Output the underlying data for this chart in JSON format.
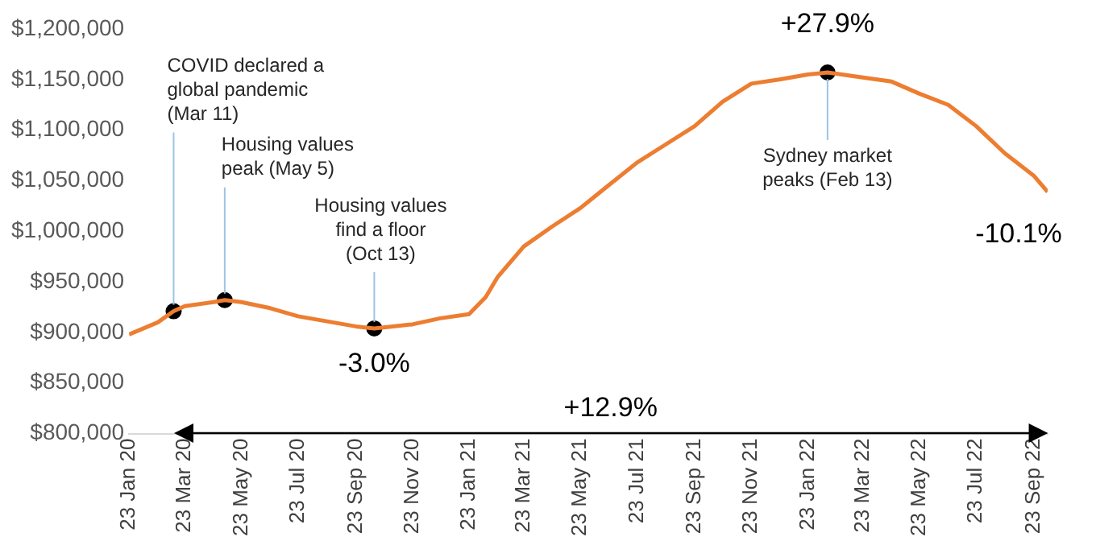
{
  "chart_data": {
    "type": "line",
    "x": [
      "2020-01-23",
      "2020-02-23",
      "2020-03-11",
      "2020-03-23",
      "2020-04-23",
      "2020-05-05",
      "2020-05-23",
      "2020-06-23",
      "2020-07-23",
      "2020-08-23",
      "2020-09-23",
      "2020-10-13",
      "2020-10-23",
      "2020-11-23",
      "2020-12-23",
      "2021-01-23",
      "2021-02-10",
      "2021-02-23",
      "2021-03-23",
      "2021-04-23",
      "2021-05-23",
      "2021-06-23",
      "2021-07-23",
      "2021-08-23",
      "2021-09-23",
      "2021-10-23",
      "2021-11-23",
      "2021-12-23",
      "2022-01-23",
      "2022-02-13",
      "2022-03-23",
      "2022-04-23",
      "2022-05-23",
      "2022-06-23",
      "2022-07-23",
      "2022-08-23",
      "2022-09-23",
      "2022-10-08"
    ],
    "series": [
      {
        "type": "line",
        "color": "#ed7d31",
        "values": [
          898000,
          910000,
          921000,
          926000,
          930000,
          932000,
          930000,
          924000,
          916000,
          911000,
          906000,
          904000,
          905000,
          908000,
          914000,
          918000,
          935000,
          955000,
          985000,
          1005000,
          1023000,
          1046000,
          1068000,
          1086000,
          1104000,
          1128000,
          1146000,
          1150000,
          1155000,
          1157000,
          1152000,
          1148000,
          1136000,
          1125000,
          1104000,
          1077000,
          1055000,
          1039000
        ]
      },
      {
        "type": "scatter",
        "color": "#000000",
        "marker": "circle",
        "x": [
          "2020-03-11",
          "2020-05-05",
          "2020-10-13",
          "2022-02-13"
        ],
        "values": [
          921000,
          932000,
          904000,
          1157000
        ]
      }
    ],
    "xlim": [
      "2020-01-23",
      "2022-10-08"
    ],
    "xticks": [
      {
        "value": "2020-01-23",
        "label": "23 Jan 20"
      },
      {
        "value": "2020-03-23",
        "label": "23 Mar 20"
      },
      {
        "value": "2020-05-23",
        "label": "23 May 20"
      },
      {
        "value": "2020-07-23",
        "label": "23 Jul 20"
      },
      {
        "value": "2020-09-23",
        "label": "23 Sep 20"
      },
      {
        "value": "2020-11-23",
        "label": "23 Nov 20"
      },
      {
        "value": "2021-01-23",
        "label": "23 Jan 21"
      },
      {
        "value": "2021-03-23",
        "label": "23 Mar 21"
      },
      {
        "value": "2021-05-23",
        "label": "23 May 21"
      },
      {
        "value": "2021-07-23",
        "label": "23 Jul 21"
      },
      {
        "value": "2021-09-23",
        "label": "23 Sep 21"
      },
      {
        "value": "2021-11-23",
        "label": "23 Nov 21"
      },
      {
        "value": "2022-01-23",
        "label": "23 Jan 22"
      },
      {
        "value": "2022-03-23",
        "label": "23 Mar 22"
      },
      {
        "value": "2022-05-23",
        "label": "23 May 22"
      },
      {
        "value": "2022-07-23",
        "label": "23 Jul 22"
      },
      {
        "value": "2022-09-23",
        "label": "23 Sep 22"
      }
    ],
    "ylim": [
      800000,
      1200000
    ],
    "yticks": [
      {
        "value": 800000,
        "label": "$800,000"
      },
      {
        "value": 850000,
        "label": "$850,000"
      },
      {
        "value": 900000,
        "label": "$900,000"
      },
      {
        "value": 950000,
        "label": "$950,000"
      },
      {
        "value": 1000000,
        "label": "$1,000,000"
      },
      {
        "value": 1050000,
        "label": "$1,050,000"
      },
      {
        "value": 1100000,
        "label": "$1,100,000"
      },
      {
        "value": 1150000,
        "label": "$1,150,000"
      },
      {
        "value": 1200000,
        "label": "$1,200,000"
      }
    ],
    "grid": false,
    "legend": false,
    "annotations": [
      {
        "text": "COVID declared a\nglobal pandemic\n(Mar 11)",
        "x": "2020-03-11",
        "y": 921000
      },
      {
        "text": "Housing values\npeak (May 5)",
        "x": "2020-05-05",
        "y": 932000
      },
      {
        "text": "Housing values\nfind a floor\n(Oct 13)",
        "x": "2020-10-13",
        "y": 904000
      },
      {
        "text": "-3.0%",
        "x": "2020-10-13",
        "y": 904000
      },
      {
        "text": "+27.9%",
        "x": "2022-02-13",
        "y": 1157000
      },
      {
        "text": "Sydney market\npeaks (Feb 13)",
        "x": "2022-02-13",
        "y": 1157000
      },
      {
        "text": "-10.1%",
        "x": "2022-10-08",
        "y": 1039000
      },
      "+12.9%"
    ]
  }
}
